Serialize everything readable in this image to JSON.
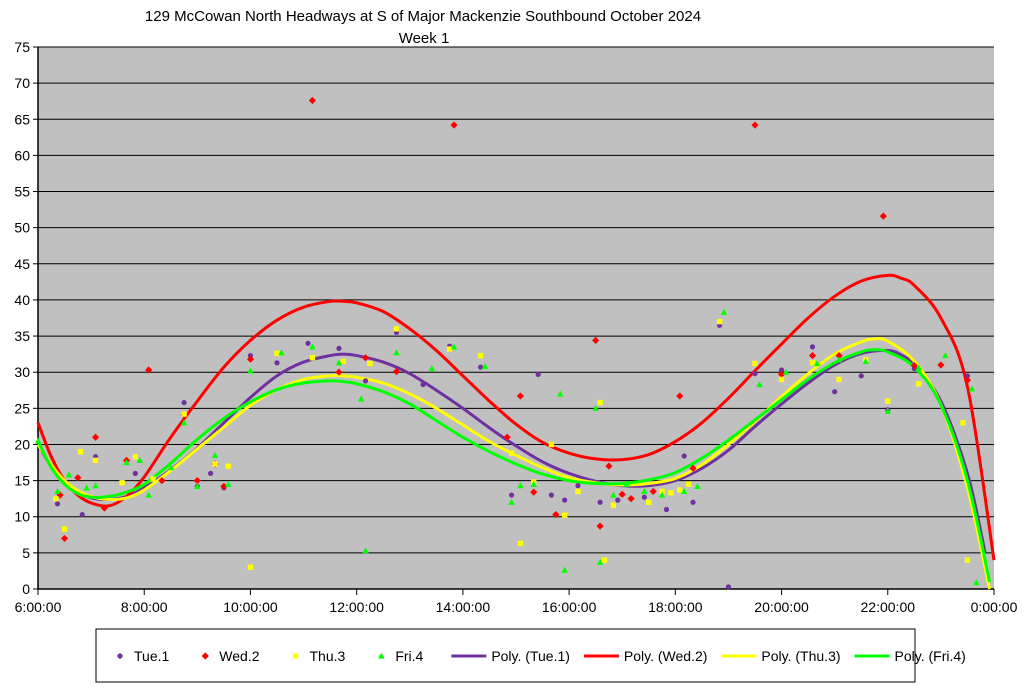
{
  "chart_data": {
    "type": "scatter",
    "title": "129 McCowan North Headways at S of Major Mackenzie Southbound October 2024",
    "subtitle": "Week 1",
    "xlabel": "",
    "ylabel": "",
    "xlim": [
      "6:00:00",
      "0:00:00"
    ],
    "ylim": [
      0,
      75
    ],
    "yticks": [
      0,
      5,
      10,
      15,
      20,
      25,
      30,
      35,
      40,
      45,
      50,
      55,
      60,
      65,
      70,
      75
    ],
    "xticks": [
      "6:00:00",
      "8:00:00",
      "10:00:00",
      "12:00:00",
      "14:00:00",
      "16:00:00",
      "18:00:00",
      "20:00:00",
      "22:00:00",
      "0:00:00"
    ],
    "grid": true,
    "plot_background": "#c0c0c0",
    "legend_position": "bottom",
    "series": [
      {
        "name": "Tue.1",
        "marker": "circle",
        "color": "#7030a0",
        "x": [
          "6:22",
          "6:50",
          "7:05",
          "7:15",
          "7:50",
          "8:45",
          "9:00",
          "9:15",
          "9:30",
          "10:00",
          "10:30",
          "11:05",
          "11:40",
          "12:10",
          "12:45",
          "13:15",
          "13:45",
          "14:20",
          "14:55",
          "15:25",
          "15:40",
          "15:55",
          "16:10",
          "16:35",
          "16:55",
          "17:25",
          "17:50",
          "18:10",
          "18:20",
          "18:50",
          "19:00",
          "19:30",
          "20:00",
          "20:35",
          "21:00",
          "21:30",
          "22:00",
          "22:30",
          "23:30"
        ],
        "y": [
          11.8,
          10.3,
          18.3,
          11.2,
          16,
          25.8,
          14.2,
          16,
          14,
          32.3,
          31.3,
          34,
          33.3,
          28.8,
          35.5,
          28.3,
          33.6,
          30.7,
          13,
          29.7,
          13,
          12.3,
          14.3,
          12,
          12.3,
          12.7,
          11,
          18.4,
          12,
          36.5,
          0.3,
          29.8,
          30.3,
          33.5,
          27.3,
          29.5,
          24.8,
          30.5,
          29.5
        ]
      },
      {
        "name": "Wed.2",
        "marker": "diamond",
        "color": "#ff0000",
        "x": [
          "6:25",
          "6:30",
          "6:45",
          "7:05",
          "7:15",
          "7:40",
          "8:05",
          "8:20",
          "8:45",
          "9:00",
          "9:20",
          "9:30",
          "10:00",
          "11:10",
          "11:40",
          "12:10",
          "12:45",
          "13:50",
          "14:50",
          "15:05",
          "15:20",
          "15:45",
          "16:30",
          "16:35",
          "16:45",
          "17:00",
          "17:10",
          "17:35",
          "18:05",
          "18:20",
          "19:30",
          "20:00",
          "20:35",
          "21:05",
          "21:55",
          "22:30",
          "23:00",
          "23:30"
        ],
        "y": [
          13,
          7,
          15.4,
          21,
          11.2,
          17.8,
          30.3,
          15,
          24.1,
          15,
          17.3,
          14.2,
          31.8,
          67.6,
          30,
          32,
          30.1,
          64.2,
          21,
          26.7,
          13.4,
          10.3,
          34.4,
          8.7,
          17,
          13.1,
          12.5,
          13.5,
          26.7,
          16.7,
          64.2,
          29.7,
          32.3,
          32.3,
          51.6,
          30.9,
          31,
          28.9
        ]
      },
      {
        "name": "Thu.3",
        "marker": "square",
        "color": "#ffff00",
        "x": [
          "6:20",
          "6:30",
          "6:48",
          "7:05",
          "7:35",
          "7:50",
          "8:10",
          "8:45",
          "9:20",
          "9:35",
          "10:00",
          "10:30",
          "11:10",
          "11:45",
          "12:15",
          "12:45",
          "13:45",
          "14:20",
          "14:55",
          "15:05",
          "15:20",
          "15:40",
          "15:55",
          "16:10",
          "16:35",
          "16:40",
          "16:50",
          "17:30",
          "17:45",
          "17:55",
          "18:05",
          "18:15",
          "18:50",
          "19:30",
          "20:00",
          "20:35",
          "21:05",
          "21:35",
          "22:00",
          "22:35",
          "23:25",
          "23:30"
        ],
        "y": [
          12.5,
          8.3,
          19,
          17.8,
          14.7,
          18.3,
          15.2,
          24.2,
          17.3,
          17,
          3,
          32.6,
          32,
          31.5,
          31.2,
          36,
          33.2,
          32.3,
          18.8,
          6.3,
          14.8,
          20,
          10.2,
          13.5,
          25.8,
          4,
          11.6,
          12,
          13.5,
          13.3,
          13.7,
          14.5,
          37,
          31.2,
          29,
          31.3,
          29,
          31.7,
          26,
          28.4,
          23,
          4
        ]
      },
      {
        "name": "Fri.4",
        "marker": "triangle",
        "color": "#00ff00",
        "x": [
          "6:00",
          "6:22",
          "6:35",
          "6:55",
          "7:05",
          "7:40",
          "7:55",
          "8:05",
          "8:30",
          "8:45",
          "9:00",
          "9:20",
          "9:35",
          "10:00",
          "10:35",
          "11:10",
          "11:40",
          "12:05",
          "12:10",
          "12:45",
          "13:25",
          "13:50",
          "14:25",
          "14:55",
          "15:05",
          "15:20",
          "15:50",
          "15:55",
          "16:30",
          "16:35",
          "16:50",
          "17:05",
          "17:25",
          "17:45",
          "18:10",
          "18:25",
          "18:55",
          "19:35",
          "20:05",
          "20:40",
          "21:05",
          "21:35",
          "22:00",
          "22:35",
          "23:05",
          "23:35",
          "23:40"
        ],
        "y": [
          20.5,
          13.5,
          15.8,
          14,
          14.3,
          17.5,
          17.8,
          13,
          16.8,
          23,
          14.2,
          18.5,
          14.5,
          30.2,
          32.7,
          33.5,
          31.3,
          26.3,
          5.3,
          32.7,
          30.5,
          33.5,
          30.8,
          12,
          14.3,
          14.5,
          27,
          2.6,
          25,
          3.7,
          13,
          14.5,
          13.5,
          13,
          13.5,
          14.2,
          38.3,
          28.3,
          30,
          31.2,
          31.7,
          31.5,
          24.6,
          30.6,
          32.3,
          27.7,
          0.9
        ]
      },
      {
        "name": "Poly. (Tue.1)",
        "color": "#7030a0",
        "line": true,
        "x": [
          "6:00",
          "6:15",
          "6:30",
          "6:45",
          "7:00",
          "7:20",
          "7:40",
          "8:00",
          "8:30",
          "9:00",
          "9:30",
          "10:00",
          "10:30",
          "11:00",
          "11:30",
          "11:45",
          "12:00",
          "12:30",
          "13:00",
          "13:30",
          "14:00",
          "14:30",
          "15:00",
          "15:30",
          "16:00",
          "16:30",
          "17:00",
          "17:30",
          "18:00",
          "18:30",
          "19:00",
          "19:30",
          "20:00",
          "20:30",
          "21:00",
          "21:30",
          "22:00",
          "22:15",
          "22:30",
          "23:00",
          "23:30",
          "23:50"
        ],
        "y": [
          20,
          17,
          15,
          13.5,
          12.6,
          12.4,
          12.8,
          14,
          16.5,
          19.5,
          23,
          26.5,
          29.5,
          31.4,
          32.3,
          32.5,
          32.3,
          31.4,
          29.8,
          27.5,
          25,
          22.3,
          19.8,
          17.6,
          16,
          14.9,
          14.3,
          14.3,
          15,
          16.7,
          19.2,
          22.5,
          25.6,
          28.5,
          31,
          32.6,
          33,
          32.4,
          31,
          26,
          16,
          5
        ]
      },
      {
        "name": "Poly. (Wed.2)",
        "color": "#ff0000",
        "line": true,
        "x": [
          "6:00",
          "6:15",
          "6:30",
          "6:45",
          "7:00",
          "7:20",
          "7:40",
          "8:00",
          "8:30",
          "9:00",
          "9:30",
          "10:00",
          "10:30",
          "11:00",
          "11:30",
          "11:45",
          "12:00",
          "12:30",
          "13:00",
          "13:30",
          "14:00",
          "14:30",
          "15:00",
          "15:30",
          "16:00",
          "16:30",
          "17:00",
          "17:30",
          "18:00",
          "18:30",
          "19:00",
          "19:30",
          "20:00",
          "20:30",
          "21:00",
          "21:30",
          "22:00",
          "22:15",
          "22:30",
          "23:00",
          "23:30",
          "0:00"
        ],
        "y": [
          23,
          18.3,
          15,
          13,
          11.9,
          11.5,
          12.8,
          15.5,
          21,
          26,
          30.7,
          34.4,
          37.2,
          39,
          39.8,
          39.8,
          39.6,
          38.4,
          36,
          33,
          29.5,
          26,
          22.8,
          20.3,
          18.8,
          18,
          17.9,
          18.6,
          20.4,
          23,
          26.4,
          30.2,
          33.9,
          37.5,
          40.5,
          42.6,
          43.4,
          43,
          42,
          37.5,
          28,
          4
        ]
      },
      {
        "name": "Poly. (Thu.3)",
        "color": "#ffff00",
        "line": true,
        "x": [
          "6:00",
          "6:15",
          "6:30",
          "6:45",
          "7:00",
          "7:20",
          "7:40",
          "8:00",
          "8:30",
          "9:00",
          "9:30",
          "10:00",
          "10:30",
          "11:00",
          "11:30",
          "11:45",
          "12:00",
          "12:30",
          "13:00",
          "13:30",
          "14:00",
          "14:30",
          "15:00",
          "15:30",
          "16:00",
          "16:30",
          "17:00",
          "17:30",
          "18:00",
          "18:30",
          "19:00",
          "19:30",
          "20:00",
          "20:30",
          "21:00",
          "21:30",
          "21:45",
          "22:00",
          "22:30",
          "23:00",
          "23:30",
          "23:55"
        ],
        "y": [
          20,
          17.2,
          15,
          13.6,
          12.8,
          12.4,
          12.6,
          13.7,
          16.4,
          19.4,
          22.4,
          25.4,
          27.6,
          29,
          29.5,
          29.5,
          29.3,
          28.5,
          27,
          25,
          22.7,
          20.4,
          18.5,
          16.8,
          15.4,
          14.7,
          14.4,
          14.6,
          15.3,
          17.2,
          20,
          23.2,
          26.6,
          29.8,
          32.5,
          34.2,
          34.6,
          34.3,
          31.5,
          25.5,
          14,
          0
        ]
      },
      {
        "name": "Poly. (Fri.4)",
        "color": "#00ff00",
        "line": true,
        "x": [
          "6:00",
          "6:15",
          "6:30",
          "6:45",
          "7:00",
          "7:20",
          "7:40",
          "8:00",
          "8:30",
          "9:00",
          "9:30",
          "10:00",
          "10:30",
          "11:00",
          "11:30",
          "11:45",
          "12:00",
          "12:30",
          "13:00",
          "13:30",
          "14:00",
          "14:30",
          "15:00",
          "15:30",
          "16:00",
          "16:30",
          "17:00",
          "17:30",
          "18:00",
          "18:30",
          "19:00",
          "19:30",
          "20:00",
          "20:30",
          "21:00",
          "21:30",
          "21:45",
          "22:00",
          "22:30",
          "23:00",
          "23:30",
          "23:55"
        ],
        "y": [
          20.5,
          16.8,
          14.5,
          13.2,
          12.7,
          12.8,
          13.4,
          14.5,
          17.4,
          20.7,
          23.6,
          25.9,
          27.6,
          28.5,
          28.8,
          28.7,
          28.4,
          27.3,
          25.6,
          23.3,
          21,
          19,
          17.3,
          15.9,
          15,
          14.6,
          14.6,
          15.1,
          16.1,
          18.1,
          20.6,
          23.4,
          26.2,
          29,
          31.3,
          32.8,
          33.1,
          32.8,
          30.7,
          25.5,
          15,
          1
        ]
      }
    ]
  }
}
